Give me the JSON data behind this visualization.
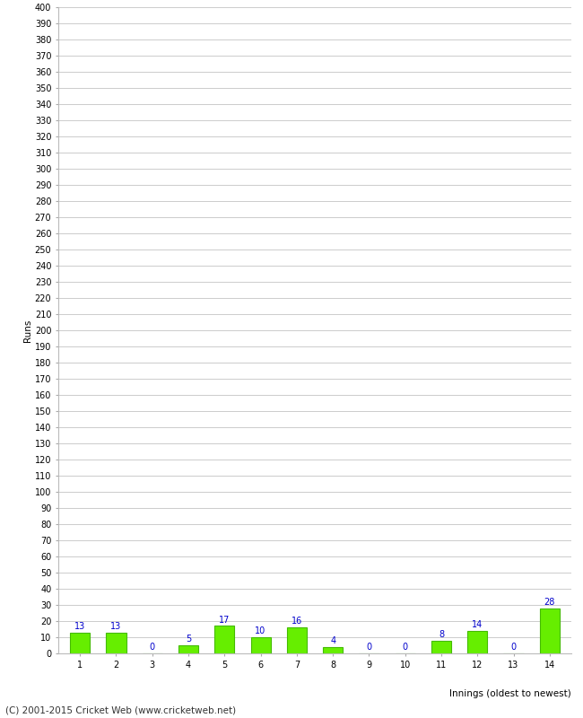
{
  "xlabel": "Innings (oldest to newest)",
  "ylabel": "Runs",
  "categories": [
    1,
    2,
    3,
    4,
    5,
    6,
    7,
    8,
    9,
    10,
    11,
    12,
    13,
    14
  ],
  "values": [
    13,
    13,
    0,
    5,
    17,
    10,
    16,
    4,
    0,
    0,
    8,
    14,
    0,
    28
  ],
  "bar_color": "#66ee00",
  "bar_edge_color": "#44bb00",
  "label_color": "#0000cc",
  "label_fontsize": 7,
  "ytick_step": 10,
  "ymax": 400,
  "ymin": 0,
  "background_color": "#ffffff",
  "grid_color": "#cccccc",
  "footer": "(C) 2001-2015 Cricket Web (www.cricketweb.net)",
  "footer_fontsize": 7.5,
  "ylabel_fontsize": 7.5,
  "xlabel_fontsize": 7.5,
  "tick_fontsize": 7
}
